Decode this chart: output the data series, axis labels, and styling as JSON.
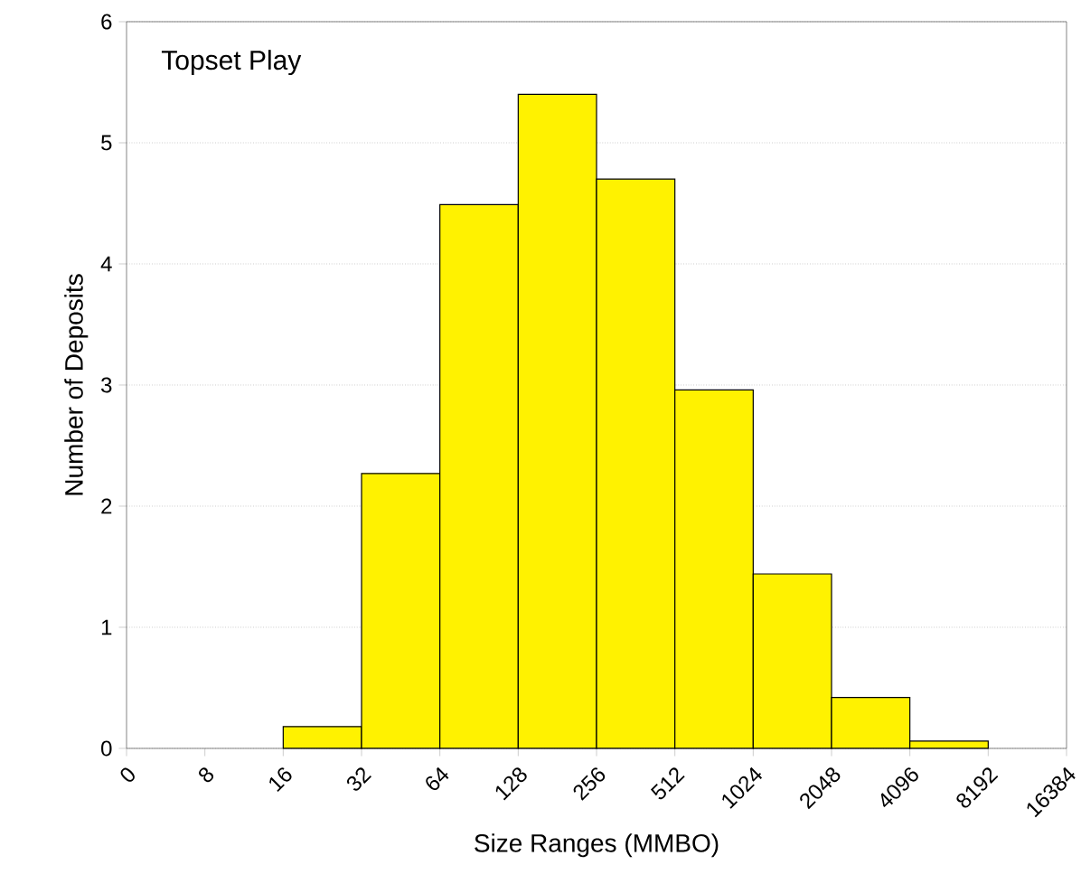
{
  "chart_data": {
    "type": "histogram",
    "title": "Topset Play",
    "xlabel": "Size Ranges (MMBO)",
    "ylabel": "Number of Deposits",
    "bins": [
      16,
      32,
      64,
      128,
      256,
      512,
      1024,
      2048,
      4096,
      8192
    ],
    "values": [
      0.18,
      2.27,
      4.49,
      5.4,
      4.7,
      2.96,
      1.44,
      0.42,
      0.06
    ],
    "color": "#fff200",
    "log": "x",
    "xlim": [
      0,
      16384
    ],
    "xticks": [
      0,
      8,
      16,
      32,
      64,
      128,
      256,
      512,
      1024,
      2048,
      4096,
      8192,
      16384
    ],
    "ylim": [
      0,
      6
    ],
    "yticks": [
      0,
      1,
      2,
      3,
      4,
      5,
      6
    ],
    "grid": "y"
  }
}
